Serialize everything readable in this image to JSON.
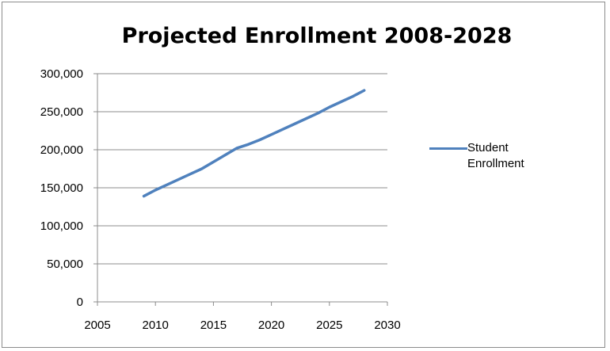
{
  "chart_data": {
    "type": "line",
    "title": "Projected Enrollment 2008-2028",
    "xlabel": "",
    "ylabel": "",
    "xlim": [
      2005,
      2030
    ],
    "ylim": [
      0,
      300000
    ],
    "x_ticks": [
      2005,
      2010,
      2015,
      2020,
      2025,
      2030
    ],
    "y_ticks": [
      0,
      50000,
      100000,
      150000,
      200000,
      250000,
      300000
    ],
    "y_tick_labels": [
      "0",
      "50,000",
      "100,000",
      "150,000",
      "200,000",
      "250,000",
      "300,000"
    ],
    "grid": "horizontal",
    "legend_position": "right",
    "series": [
      {
        "name": "Student Enrollment",
        "color": "#4f81bd",
        "x": [
          2009,
          2010,
          2011,
          2012,
          2013,
          2014,
          2015,
          2016,
          2017,
          2018,
          2019,
          2020,
          2021,
          2022,
          2023,
          2024,
          2025,
          2026,
          2027,
          2028
        ],
        "y": [
          139000,
          147000,
          154000,
          161000,
          168000,
          175000,
          184000,
          193000,
          202000,
          207000,
          213000,
          220000,
          227000,
          234000,
          241000,
          248000,
          256000,
          263000,
          270000,
          278000
        ]
      }
    ]
  }
}
